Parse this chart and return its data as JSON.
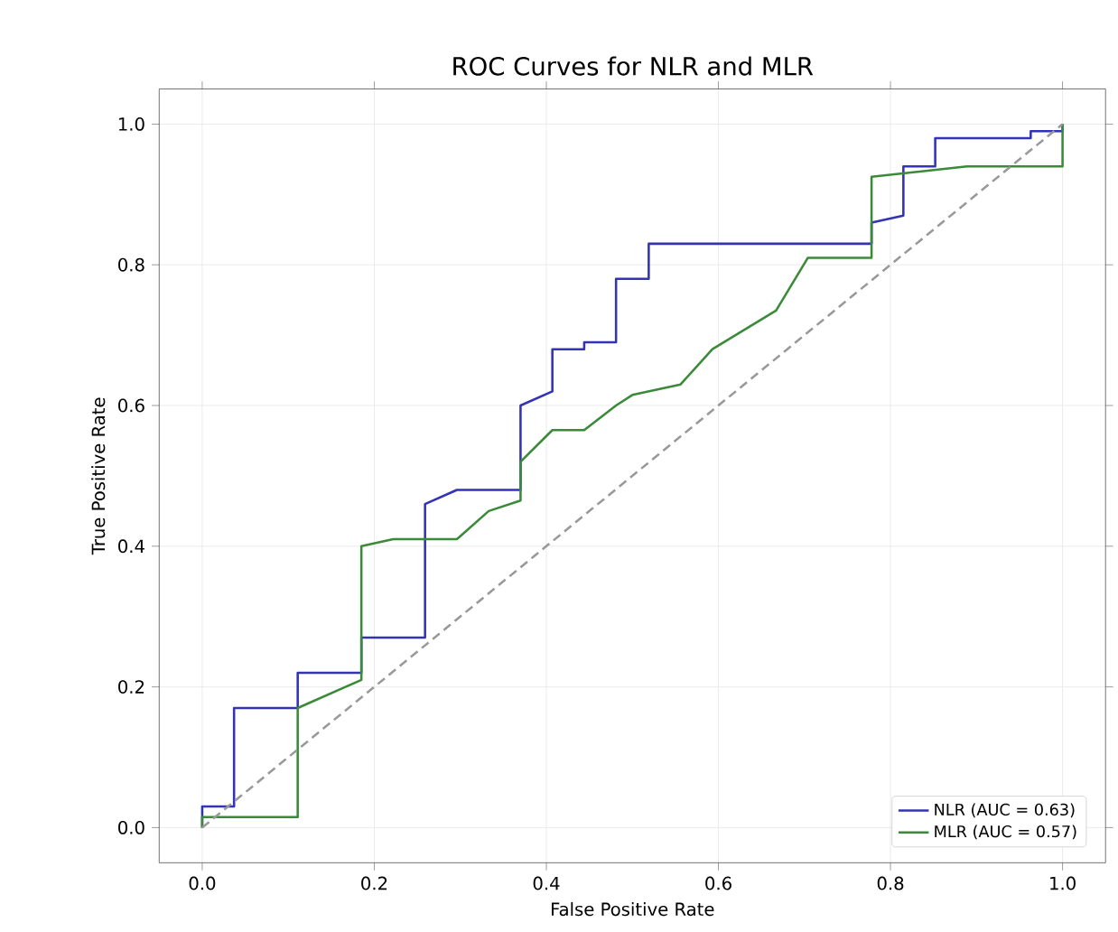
{
  "chart_data": {
    "type": "line",
    "title": "ROC Curves for NLR and MLR",
    "xlabel": "False Positive Rate",
    "ylabel": "True Positive Rate",
    "xlim": [
      -0.05,
      1.05
    ],
    "ylim": [
      -0.05,
      1.05
    ],
    "xticks": [
      {
        "value": 0,
        "label": "0.0"
      },
      {
        "value": 0.2,
        "label": "0.2"
      },
      {
        "value": 0.4,
        "label": "0.4"
      },
      {
        "value": 0.6,
        "label": "0.6"
      },
      {
        "value": 0.8,
        "label": "0.8"
      },
      {
        "value": 1,
        "label": "1.0"
      }
    ],
    "yticks": [
      {
        "value": 0,
        "label": "0.0"
      },
      {
        "value": 0.2,
        "label": "0.2"
      },
      {
        "value": 0.4,
        "label": "0.4"
      },
      {
        "value": 0.6,
        "label": "0.6"
      },
      {
        "value": 0.8,
        "label": "0.8"
      },
      {
        "value": 1,
        "label": "1.0"
      }
    ],
    "grid": true,
    "legend": "bottom right",
    "series": [
      {
        "name": "NLR (AUC = 0.63)",
        "color": "#3333b5",
        "x": [
          0,
          0,
          0.037,
          0.037,
          0.111,
          0.111,
          0.185,
          0.185,
          0.259,
          0.259,
          0.296,
          0.37,
          0.37,
          0.407,
          0.407,
          0.444,
          0.444,
          0.481,
          0.481,
          0.519,
          0.519,
          0.778,
          0.778,
          0.815,
          0.815,
          0.852,
          0.852,
          0.963,
          0.963,
          1.0,
          1.0
        ],
        "values": [
          0,
          0.03,
          0.03,
          0.17,
          0.17,
          0.22,
          0.22,
          0.27,
          0.27,
          0.46,
          0.48,
          0.48,
          0.6,
          0.62,
          0.68,
          0.68,
          0.69,
          0.69,
          0.78,
          0.78,
          0.83,
          0.83,
          0.86,
          0.87,
          0.94,
          0.94,
          0.98,
          0.98,
          0.99,
          0.99,
          1.0
        ]
      },
      {
        "name": "MLR (AUC = 0.57)",
        "color": "#3a8a3a",
        "x": [
          0,
          0,
          0.111,
          0.111,
          0.185,
          0.185,
          0.222,
          0.296,
          0.333,
          0.37,
          0.37,
          0.407,
          0.444,
          0.481,
          0.5,
          0.556,
          0.593,
          0.667,
          0.704,
          0.778,
          0.778,
          0.889,
          1.0,
          1.0
        ],
        "values": [
          0,
          0.015,
          0.015,
          0.17,
          0.21,
          0.4,
          0.41,
          0.41,
          0.45,
          0.465,
          0.52,
          0.565,
          0.565,
          0.6,
          0.615,
          0.63,
          0.68,
          0.735,
          0.81,
          0.81,
          0.925,
          0.94,
          0.94,
          1.0
        ]
      },
      {
        "color": "#999999",
        "line_style": "dashed",
        "x": [
          0,
          1
        ],
        "values": [
          0,
          1
        ]
      }
    ]
  }
}
